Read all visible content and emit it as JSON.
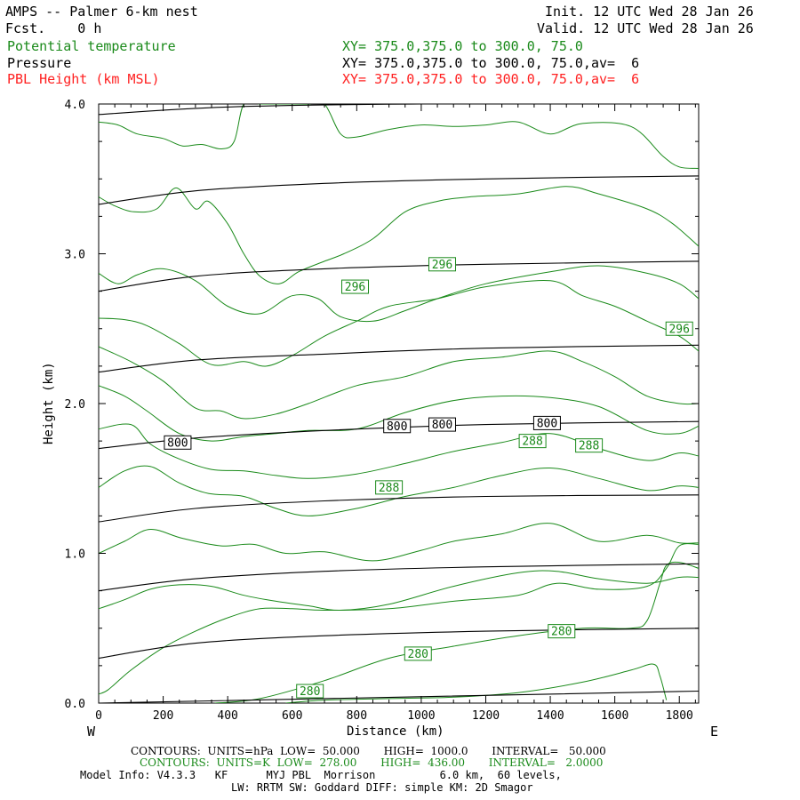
{
  "header": {
    "title": "AMPS -- Palmer 6-km nest",
    "fcst_label": "Fcst.",
    "fcst_value": "0 h",
    "init": "Init. 12 UTC Wed 28 Jan 26",
    "valid": "Valid. 12 UTC Wed 28 Jan 26",
    "var1": "Potential temperature",
    "var2": "Pressure",
    "var3": "PBL Height (km MSL)",
    "xy1": "XY= 375.0,375.0 to 300.0, 75.0",
    "xy2": "XY= 375.0,375.0 to 300.0, 75.0,av=  6",
    "xy3": "XY= 375.0,375.0 to 300.0, 75.0,av=  6"
  },
  "footer": {
    "line1": "CONTOURS:  UNITS=hPa  LOW=  50.000       HIGH=  1000.0       INTERVAL=   50.000",
    "line2": "CONTOURS:  UNITS=K  LOW=  278.00       HIGH=  436.00       INTERVAL=   2.0000",
    "line3": "Model Info: V4.3.3   KF      MYJ PBL  Morrison          6.0 km,  60 levels,",
    "line4": "LW: RRTM SW: Goddard DIFF: simple KM: 2D Smagor"
  },
  "colors": {
    "theta": "#1a8a1a",
    "pressure": "#000000",
    "pbl": "#ff2020"
  },
  "chart_data": {
    "type": "line",
    "title": "AMPS -- Palmer 6-km nest",
    "xlabel": "Distance (km)",
    "ylabel": "Height (km)",
    "xlim": [
      0,
      1860
    ],
    "ylim": [
      0,
      4
    ],
    "x_ticks": [
      0,
      200,
      400,
      600,
      800,
      1000,
      1200,
      1400,
      1600,
      1800
    ],
    "y_ticks": [
      0.0,
      1.0,
      2.0,
      3.0,
      4.0
    ],
    "x_tick_labels": [
      "0",
      "200",
      "400",
      "600",
      "800",
      "1000",
      "1200",
      "1400",
      "1600",
      "1800"
    ],
    "y_tick_labels": [
      "0.0",
      "1.0",
      "2.0",
      "3.0",
      "4.0"
    ],
    "left_end_label": "W",
    "right_end_label": "E",
    "pressure_series": [
      {
        "name": "isobar",
        "x": [
          0,
          1860
        ],
        "y": [
          0.0,
          0.08
        ]
      },
      {
        "name": "isobar",
        "x": [
          0,
          300,
          700,
          1200,
          1860
        ],
        "y": [
          0.3,
          0.4,
          0.45,
          0.48,
          0.5
        ]
      },
      {
        "name": "isobar",
        "x": [
          0,
          300,
          700,
          1200,
          1860
        ],
        "y": [
          0.75,
          0.83,
          0.88,
          0.91,
          0.93
        ]
      },
      {
        "name": "isobar",
        "x": [
          0,
          300,
          700,
          1200,
          1860
        ],
        "y": [
          1.21,
          1.3,
          1.35,
          1.38,
          1.39
        ]
      },
      {
        "name": "isobar",
        "x": [
          0,
          300,
          700,
          1200,
          1860
        ],
        "y": [
          1.7,
          1.77,
          1.82,
          1.86,
          1.88
        ]
      },
      {
        "name": "isobar",
        "x": [
          0,
          300,
          700,
          1200,
          1860
        ],
        "y": [
          2.21,
          2.29,
          2.33,
          2.37,
          2.39
        ]
      },
      {
        "name": "isobar",
        "x": [
          0,
          300,
          700,
          1200,
          1860
        ],
        "y": [
          2.75,
          2.85,
          2.9,
          2.93,
          2.95
        ]
      },
      {
        "name": "isobar",
        "x": [
          0,
          300,
          700,
          1200,
          1860
        ],
        "y": [
          3.33,
          3.42,
          3.47,
          3.5,
          3.52
        ]
      },
      {
        "name": "isobar",
        "x": [
          0,
          400,
          1000,
          1860
        ],
        "y": [
          3.93,
          3.98,
          4.0,
          4.0
        ]
      }
    ],
    "theta_series": [
      {
        "name": "theta",
        "x": [
          580,
          700,
          900,
          1100,
          1300,
          1500,
          1650,
          1720,
          1740,
          1760
        ],
        "y": [
          0.0,
          0.02,
          0.03,
          0.04,
          0.07,
          0.14,
          0.22,
          0.26,
          0.18,
          0.02
        ]
      },
      {
        "name": "theta",
        "x": [
          360,
          500,
          700,
          900,
          1100,
          1300,
          1500,
          1650,
          1700,
          1740,
          1760,
          1800,
          1860
        ],
        "y": [
          0.0,
          0.03,
          0.15,
          0.3,
          0.38,
          0.45,
          0.5,
          0.5,
          0.55,
          0.8,
          0.92,
          0.94,
          0.9
        ]
      },
      {
        "name": "theta",
        "x": [
          0,
          30,
          100,
          200,
          300,
          400,
          500,
          600,
          700,
          900,
          1100,
          1300,
          1420,
          1550,
          1700,
          1760,
          1800,
          1860
        ],
        "y": [
          0.06,
          0.09,
          0.22,
          0.37,
          0.48,
          0.57,
          0.63,
          0.63,
          0.62,
          0.63,
          0.68,
          0.72,
          0.8,
          0.76,
          0.78,
          0.9,
          1.05,
          1.06
        ]
      },
      {
        "name": "theta",
        "x": [
          0,
          80,
          160,
          250,
          350,
          450,
          550,
          650,
          750,
          900,
          1100,
          1300,
          1420,
          1550,
          1700,
          1800,
          1860
        ],
        "y": [
          0.63,
          0.69,
          0.76,
          0.79,
          0.78,
          0.72,
          0.68,
          0.65,
          0.62,
          0.66,
          0.78,
          0.87,
          0.88,
          0.83,
          0.8,
          0.84,
          0.84
        ]
      },
      {
        "name": "theta",
        "x": [
          0,
          80,
          160,
          260,
          380,
          480,
          580,
          700,
          850,
          1000,
          1100,
          1250,
          1400,
          1550,
          1700,
          1800,
          1860
        ],
        "y": [
          1.0,
          1.08,
          1.16,
          1.1,
          1.05,
          1.06,
          1.0,
          1.01,
          0.95,
          1.02,
          1.08,
          1.13,
          1.2,
          1.08,
          1.12,
          1.07,
          1.07
        ]
      },
      {
        "name": "theta",
        "x": [
          0,
          80,
          160,
          250,
          340,
          450,
          550,
          650,
          800,
          950,
          1100,
          1250,
          1400,
          1550,
          1700,
          1800,
          1860
        ],
        "y": [
          1.44,
          1.55,
          1.58,
          1.47,
          1.4,
          1.38,
          1.3,
          1.25,
          1.3,
          1.38,
          1.44,
          1.52,
          1.57,
          1.5,
          1.42,
          1.45,
          1.44
        ]
      },
      {
        "name": "theta",
        "x": [
          0,
          100,
          160,
          250,
          350,
          450,
          550,
          650,
          800,
          950,
          1100,
          1250,
          1400,
          1550,
          1700,
          1800,
          1860
        ],
        "y": [
          1.83,
          1.86,
          1.73,
          1.63,
          1.56,
          1.55,
          1.52,
          1.5,
          1.53,
          1.6,
          1.68,
          1.74,
          1.8,
          1.7,
          1.62,
          1.67,
          1.65
        ]
      },
      {
        "name": "theta",
        "x": [
          0,
          80,
          150,
          250,
          350,
          450,
          550,
          650,
          800,
          950,
          1100,
          1250,
          1400,
          1550,
          1700,
          1800,
          1860
        ],
        "y": [
          2.12,
          2.05,
          1.95,
          1.8,
          1.75,
          1.78,
          1.8,
          1.82,
          1.83,
          1.94,
          2.02,
          2.05,
          2.04,
          1.98,
          1.82,
          1.8,
          1.85
        ]
      },
      {
        "name": "theta",
        "x": [
          0,
          100,
          200,
          300,
          380,
          450,
          550,
          650,
          800,
          950,
          1100,
          1250,
          1400,
          1500,
          1600,
          1700,
          1800,
          1860
        ],
        "y": [
          2.38,
          2.28,
          2.15,
          1.97,
          1.95,
          1.9,
          1.93,
          2.0,
          2.12,
          2.18,
          2.28,
          2.31,
          2.35,
          2.28,
          2.18,
          2.05,
          2.0,
          2.0
        ]
      },
      {
        "name": "theta",
        "x": [
          0,
          80,
          150,
          250,
          350,
          450,
          520,
          600,
          700,
          800,
          900,
          1050,
          1200,
          1400,
          1500,
          1600,
          1700,
          1800,
          1860
        ],
        "y": [
          2.57,
          2.56,
          2.52,
          2.4,
          2.26,
          2.28,
          2.25,
          2.32,
          2.45,
          2.55,
          2.65,
          2.7,
          2.78,
          2.82,
          2.72,
          2.65,
          2.55,
          2.45,
          2.35
        ]
      },
      {
        "name": "theta",
        "x": [
          0,
          60,
          120,
          200,
          300,
          400,
          500,
          600,
          680,
          750,
          850,
          950,
          1050,
          1200,
          1400,
          1550,
          1700,
          1800,
          1860
        ],
        "y": [
          2.87,
          2.8,
          2.86,
          2.9,
          2.82,
          2.65,
          2.6,
          2.72,
          2.7,
          2.58,
          2.55,
          2.62,
          2.7,
          2.8,
          2.88,
          2.92,
          2.87,
          2.8,
          2.7
        ]
      },
      {
        "name": "theta",
        "x": [
          0,
          50,
          110,
          180,
          240,
          300,
          340,
          400,
          450,
          500,
          560,
          620,
          700,
          760,
          850,
          950,
          1050,
          1150,
          1300,
          1450,
          1550,
          1700,
          1780,
          1860
        ],
        "y": [
          3.38,
          3.32,
          3.28,
          3.3,
          3.44,
          3.3,
          3.35,
          3.2,
          3.0,
          2.85,
          2.8,
          2.88,
          2.95,
          3.0,
          3.1,
          3.28,
          3.35,
          3.38,
          3.4,
          3.45,
          3.4,
          3.3,
          3.2,
          3.05
        ]
      },
      {
        "name": "theta",
        "x": [
          0,
          60,
          120,
          200,
          260,
          320,
          380,
          420,
          450,
          500,
          550,
          600,
          650,
          700,
          750,
          800,
          900,
          1000,
          1100,
          1200,
          1300,
          1400,
          1500,
          1650,
          1750,
          1800,
          1860
        ],
        "y": [
          3.88,
          3.86,
          3.8,
          3.77,
          3.72,
          3.73,
          3.7,
          3.75,
          4.0,
          4.0,
          4.0,
          4.0,
          4.0,
          4.0,
          3.8,
          3.78,
          3.83,
          3.86,
          3.85,
          3.86,
          3.88,
          3.8,
          3.87,
          3.85,
          3.65,
          3.58,
          3.57
        ]
      }
    ],
    "contour_labels": [
      {
        "text": "800",
        "x": 245,
        "y": 1.74,
        "kind": "pressure"
      },
      {
        "text": "800",
        "x": 925,
        "y": 1.85,
        "kind": "pressure"
      },
      {
        "text": "800",
        "x": 1065,
        "y": 1.86,
        "kind": "pressure"
      },
      {
        "text": "800",
        "x": 1390,
        "y": 1.87,
        "kind": "pressure"
      },
      {
        "text": "296",
        "x": 1065,
        "y": 2.93,
        "kind": "theta"
      },
      {
        "text": "296",
        "x": 795,
        "y": 2.78,
        "kind": "theta"
      },
      {
        "text": "296",
        "x": 1800,
        "y": 2.5,
        "kind": "theta"
      },
      {
        "text": "288",
        "x": 1345,
        "y": 1.75,
        "kind": "theta"
      },
      {
        "text": "288",
        "x": 1520,
        "y": 1.72,
        "kind": "theta"
      },
      {
        "text": "288",
        "x": 900,
        "y": 1.44,
        "kind": "theta"
      },
      {
        "text": "280",
        "x": 1435,
        "y": 0.48,
        "kind": "theta"
      },
      {
        "text": "280",
        "x": 990,
        "y": 0.33,
        "kind": "theta"
      },
      {
        "text": "280",
        "x": 655,
        "y": 0.08,
        "kind": "theta"
      }
    ]
  }
}
